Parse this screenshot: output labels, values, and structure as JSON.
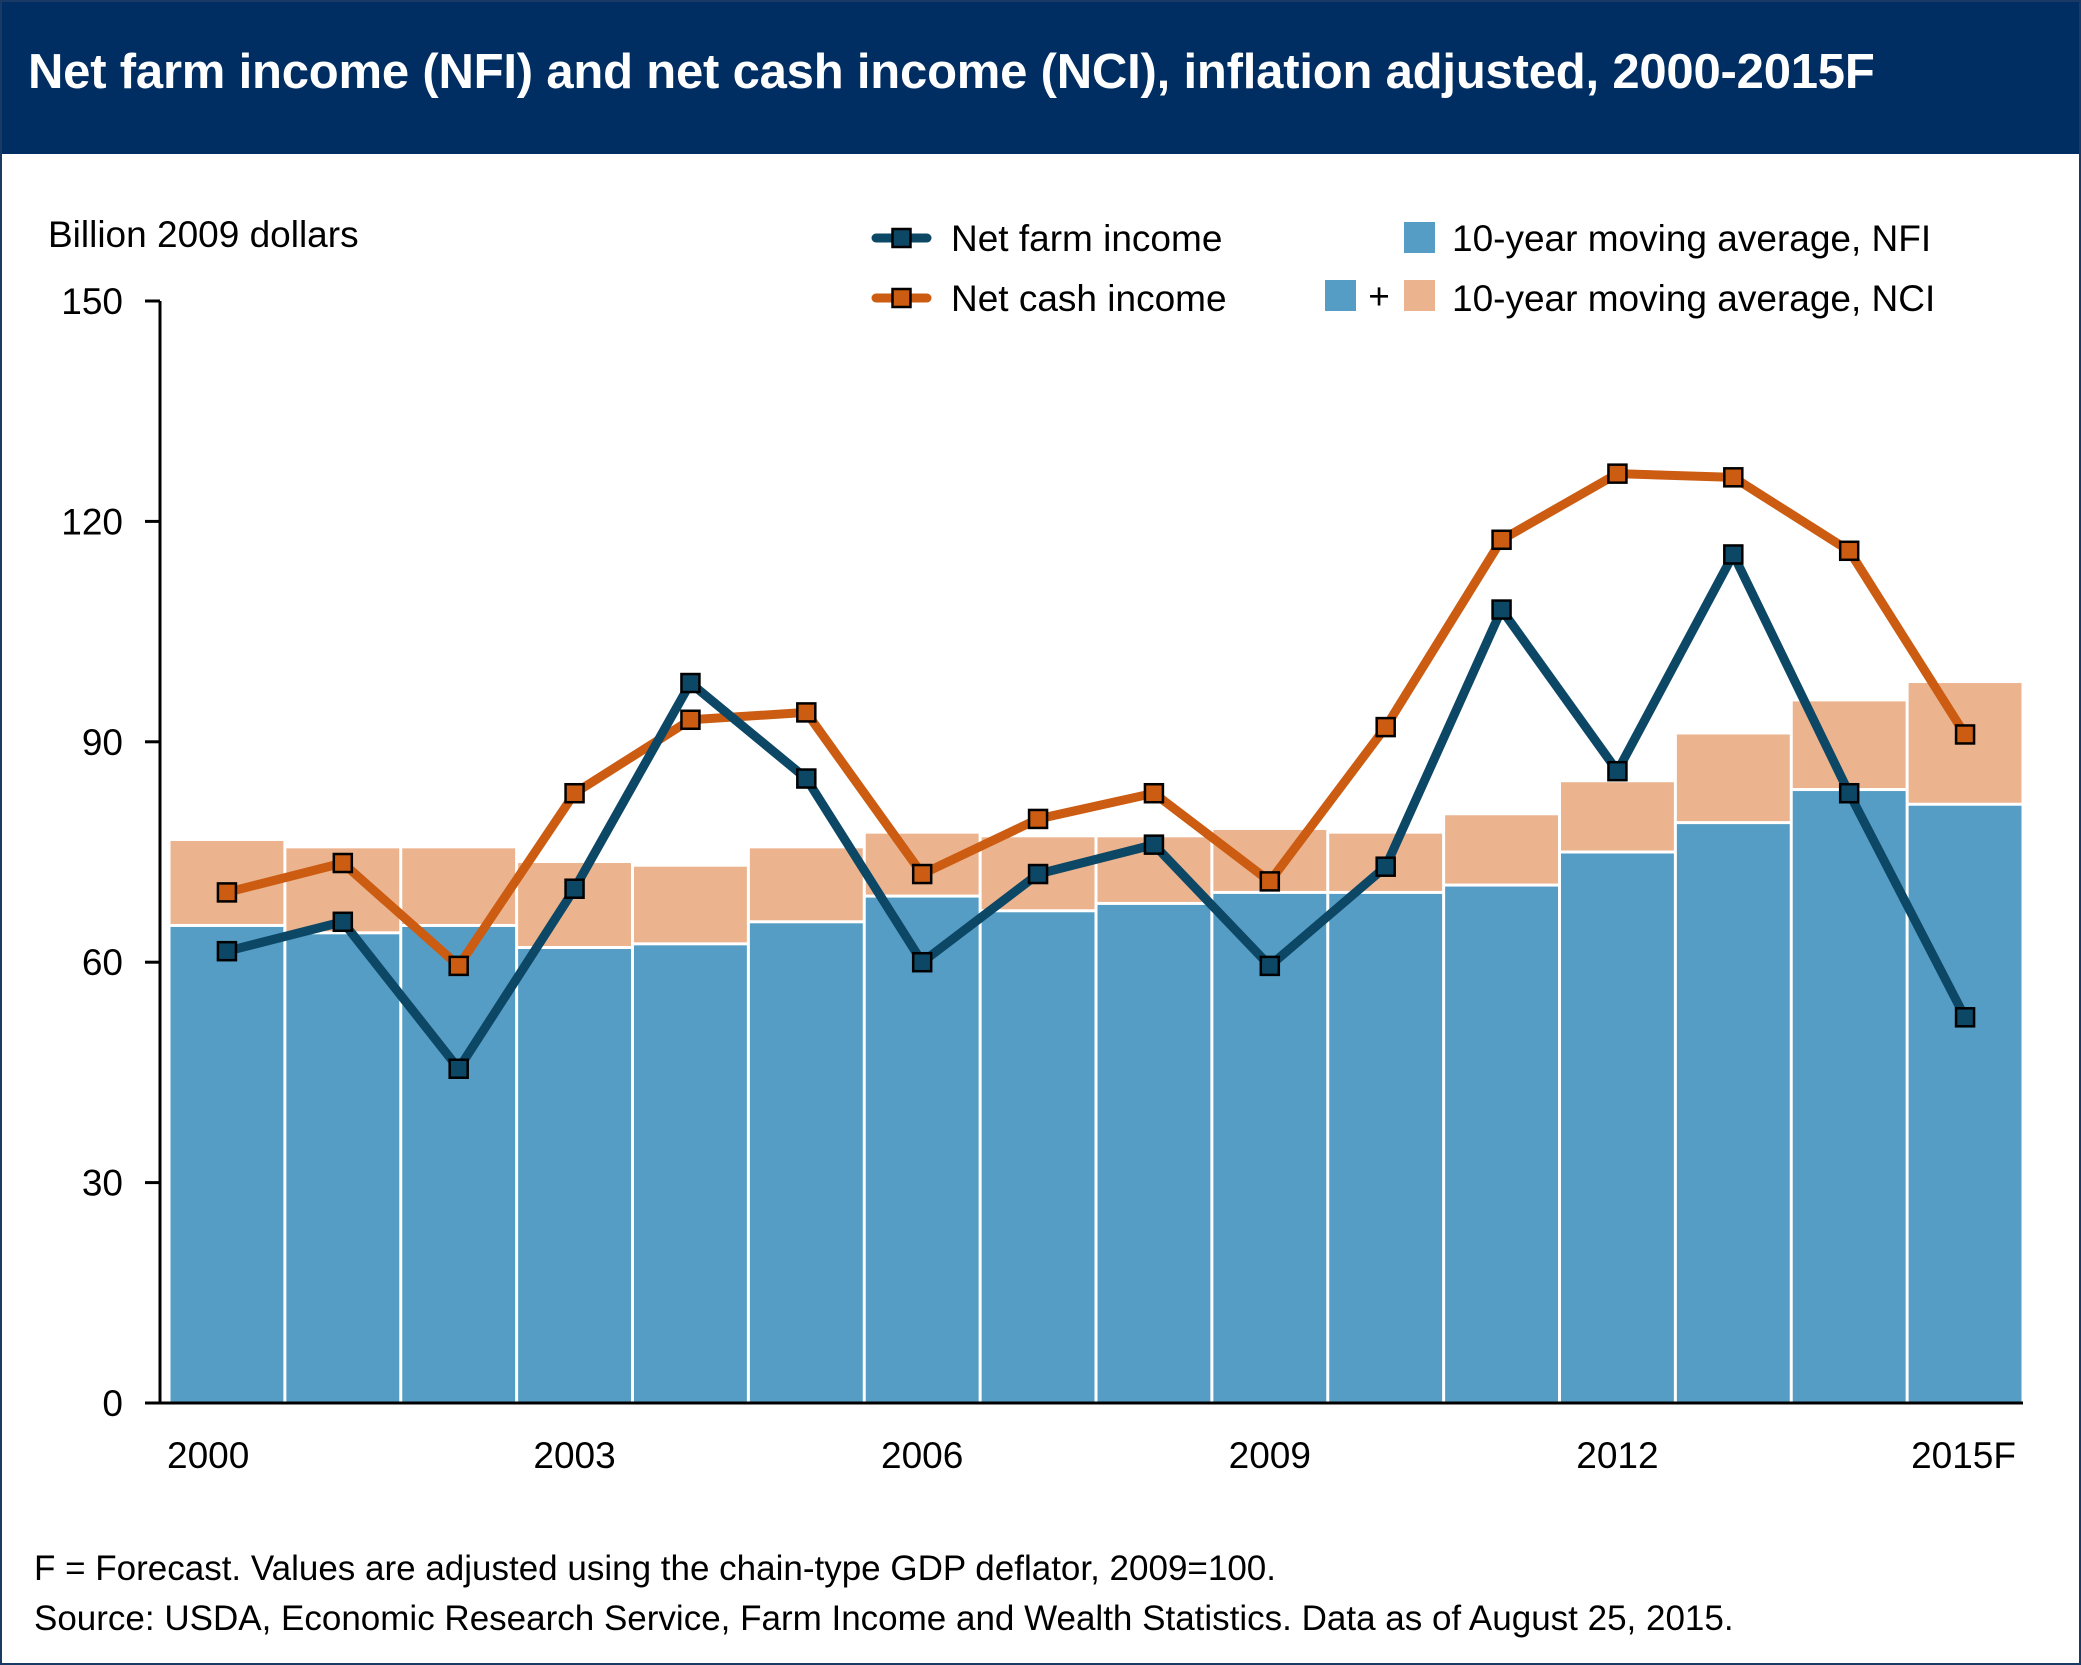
{
  "title": "Net farm income (NFI) and net cash income (NCI), inflation adjusted, 2000-2015F",
  "footnote_forecast": "F = Forecast. Values are adjusted using the chain-type GDP deflator, 2009=100.",
  "footnote_source": "Source: USDA, Economic Research Service, Farm Income and Wealth Statistics. Data as of August 25, 2015.",
  "chart_data": {
    "type": "bar",
    "ylabel": "Billion 2009 dollars",
    "ylim": [
      0,
      150
    ],
    "yticks": [
      0,
      30,
      60,
      90,
      120,
      150
    ],
    "grid": false,
    "legend_position": "top-right",
    "categories": [
      "2000",
      "2001",
      "2002",
      "2003",
      "2004",
      "2005",
      "2006",
      "2007",
      "2008",
      "2009",
      "2010",
      "2011",
      "2012",
      "2013",
      "2014",
      "2015F"
    ],
    "xtick_labels": [
      "2000",
      "",
      "",
      "2003",
      "",
      "",
      "2006",
      "",
      "",
      "2009",
      "",
      "",
      "2012",
      "",
      "",
      "2015F"
    ],
    "series": [
      {
        "name": "10-year moving average, NFI",
        "kind": "bar",
        "color": "#559dc4",
        "values": [
          65,
          64,
          65,
          62,
          62.5,
          65.5,
          69,
          67,
          68,
          69.5,
          69.5,
          70.5,
          75,
          79,
          83.5,
          81.5
        ]
      },
      {
        "name": "10-year moving average, NCI",
        "kind": "bar",
        "color": "#ebb48f",
        "values": [
          76.5,
          75.5,
          75.5,
          73.5,
          73,
          75.5,
          77.5,
          77,
          77,
          78,
          77.5,
          80,
          84.5,
          91,
          95.5,
          98
        ]
      },
      {
        "name": "Net farm income",
        "kind": "line",
        "color": "#0d4766",
        "values": [
          61.5,
          65.5,
          45.5,
          70,
          98,
          85,
          60,
          72,
          76,
          59.5,
          73,
          108,
          86,
          115.5,
          83,
          52.5
        ]
      },
      {
        "name": "Net cash income",
        "kind": "line",
        "color": "#cc5c11",
        "values": [
          69.5,
          73.5,
          59.5,
          83,
          93,
          94,
          72,
          79.5,
          83,
          71,
          92,
          117.5,
          126.5,
          126,
          116,
          91
        ]
      }
    ],
    "legend": {
      "nfi_line": "Net farm income",
      "nci_line": "Net cash income",
      "nfi_bar": "10-year moving average, NFI",
      "nci_bar": "10-year moving average, NCI",
      "plus_sign": "+"
    }
  }
}
